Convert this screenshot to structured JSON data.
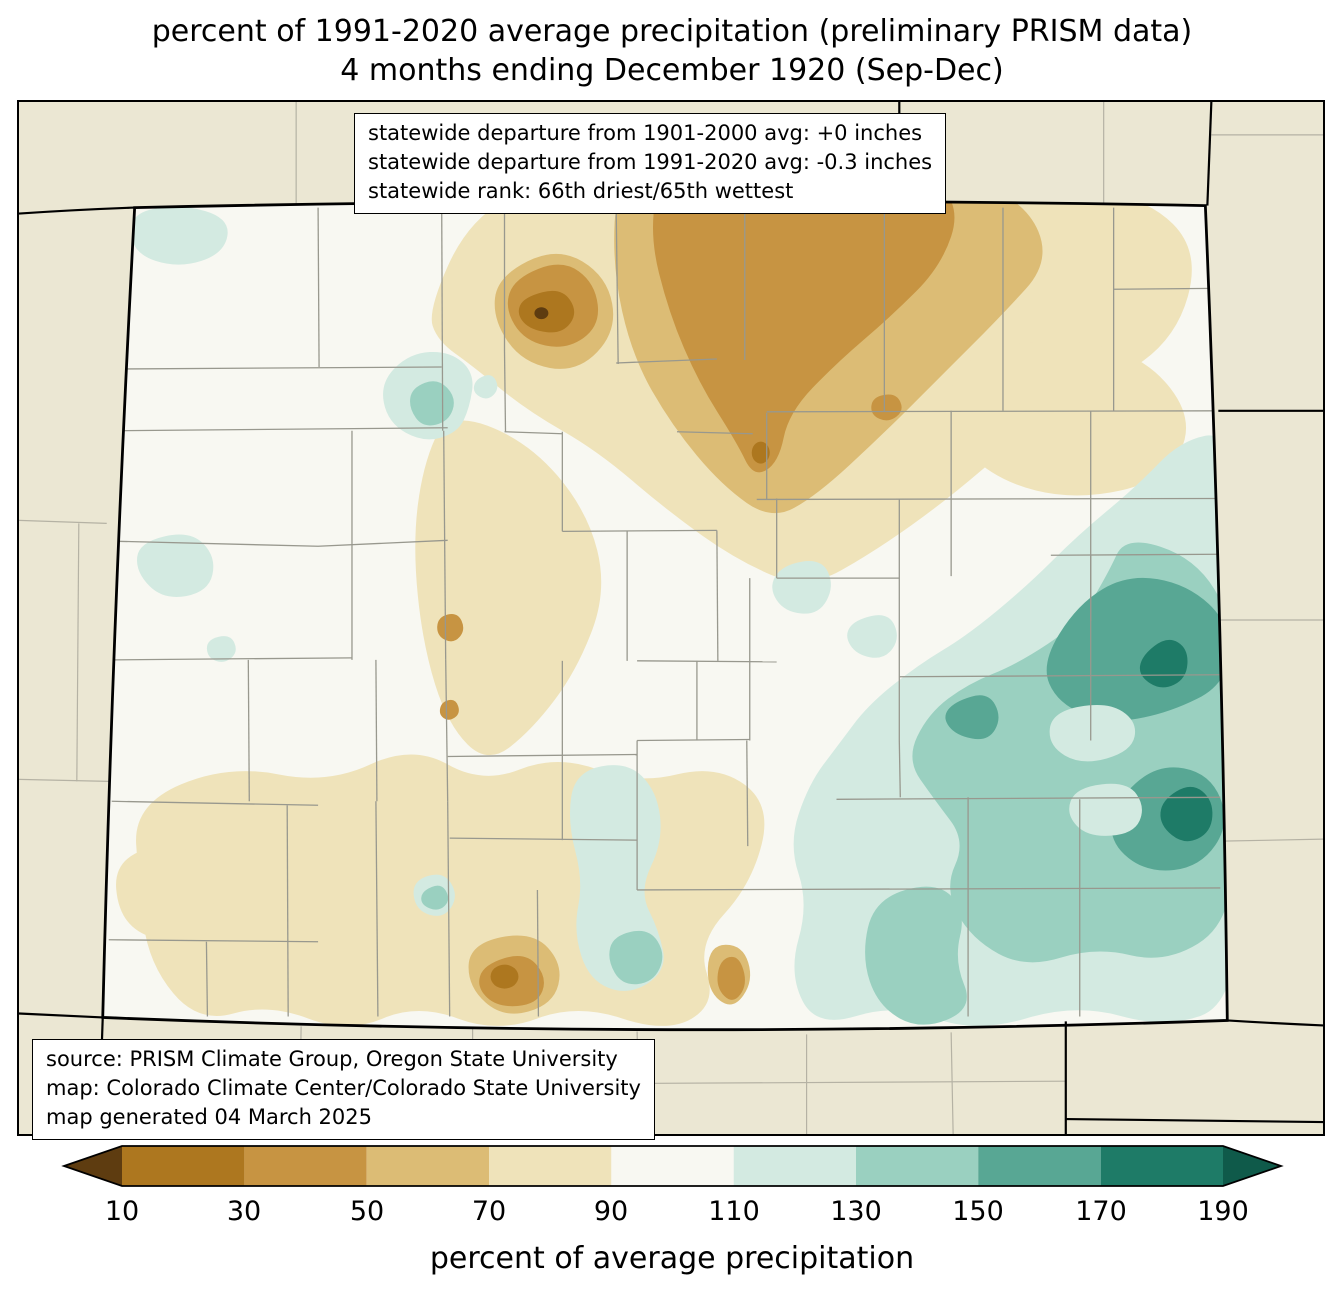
{
  "title": {
    "line1": "percent of 1991-2020 average precipitation (preliminary PRISM data)",
    "line2": "4 months ending December 1920 (Sep-Dec)"
  },
  "stats_box": {
    "lines": [
      "statewide departure from 1901-2000 avg: +0 inches",
      "statewide departure from 1991-2020 avg: -0.3 inches",
      "statewide rank: 66th driest/65th wettest"
    ]
  },
  "source_box": {
    "lines": [
      "source: PRISM Climate Group, Oregon State University",
      "map: Colorado Climate Center/Colorado State University",
      "map generated 04 March 2025"
    ]
  },
  "colorbar": {
    "label": "percent of average precipitation",
    "ticks": [
      "10",
      "30",
      "50",
      "70",
      "90",
      "110",
      "130",
      "150",
      "170",
      "190"
    ],
    "colors": [
      "#5e3c10",
      "#ad771f",
      "#c79442",
      "#dcbc75",
      "#efe3ba",
      "#f8f8f2",
      "#d3eae1",
      "#9ad0c0",
      "#58a794",
      "#1e7b67",
      "#0f5a4a"
    ]
  },
  "map": {
    "region": "Colorado",
    "background": "#ebe7d3",
    "county_line": "#98988e",
    "state_border": "#000000"
  }
}
